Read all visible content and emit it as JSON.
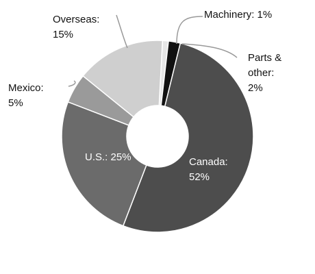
{
  "chart_data": {
    "type": "donut",
    "values": [
      1,
      2,
      52,
      25,
      5,
      15
    ],
    "labels": [
      [
        "Machinery: 1%"
      ],
      [
        "Parts &",
        "other:",
        "2%"
      ],
      [
        "Canada:",
        "52%"
      ],
      [
        "U.S.: 25%"
      ],
      [
        "Mexico:",
        "5%"
      ],
      [
        "Overseas:",
        "15%"
      ]
    ],
    "colors": [
      "#e6e6e6",
      "#111111",
      "#4d4d4d",
      "#6b6b6b",
      "#9a9a9a",
      "#cfcfcf"
    ]
  }
}
